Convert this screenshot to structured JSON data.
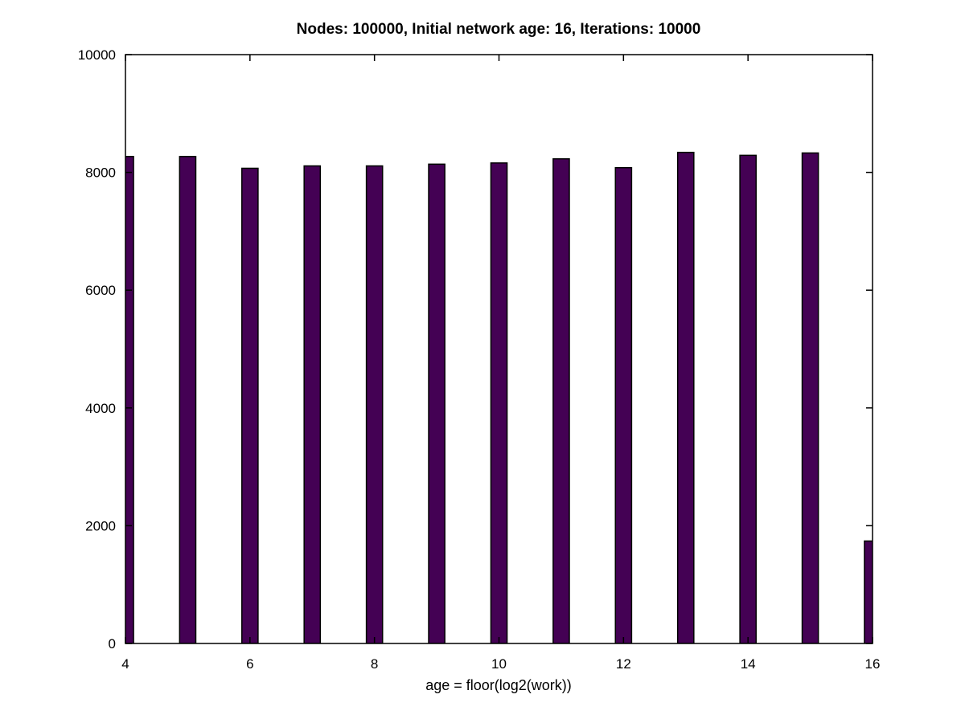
{
  "chart_data": {
    "type": "bar",
    "title": "Nodes: 100000, Initial network age: 16, Iterations: 10000",
    "xlabel": "age = floor(log2(work))",
    "ylabel": "",
    "x": [
      4,
      5,
      6,
      7,
      8,
      9,
      10,
      11,
      12,
      13,
      14,
      15,
      16
    ],
    "values": [
      8270,
      8270,
      8070,
      8110,
      8110,
      8140,
      8160,
      8230,
      8080,
      8340,
      8290,
      8330,
      1740
    ],
    "xlim": [
      4,
      16
    ],
    "ylim": [
      0,
      10000
    ],
    "xticks": [
      "4",
      "6",
      "8",
      "10",
      "12",
      "14",
      "16"
    ],
    "yticks": [
      "0",
      "2000",
      "4000",
      "6000",
      "8000",
      "10000"
    ],
    "grid": false,
    "colors": {
      "bar_fill": "#440154",
      "bar_stroke": "#000000",
      "axis": "#000000"
    }
  }
}
